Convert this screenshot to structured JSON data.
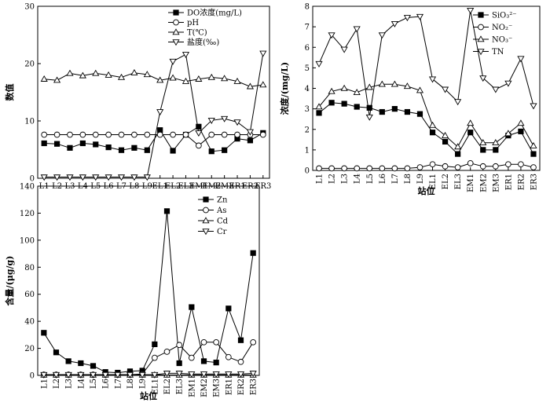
{
  "chart_data": [
    {
      "type": "line",
      "ylabel": "数值",
      "xlabel": "",
      "ylim": [
        0,
        30
      ],
      "yticks": [
        0,
        10,
        20,
        30
      ],
      "legend_position": "top-right",
      "categories": [
        "L1",
        "L2",
        "L3",
        "L4",
        "L5",
        "L6",
        "L7",
        "L8",
        "L9",
        "EL1",
        "EL2",
        "EL3",
        "EM1",
        "EM2",
        "EM3",
        "ER1",
        "ER2",
        "ER3"
      ],
      "series": [
        {
          "name": "DO浓度(mg/L)",
          "marker": "square-filled",
          "values": [
            6.1,
            6.0,
            5.3,
            6.1,
            5.9,
            5.4,
            4.9,
            5.3,
            4.9,
            8.4,
            4.8,
            7.6,
            9.0,
            4.7,
            4.9,
            6.9,
            6.6,
            7.9
          ]
        },
        {
          "name": "pH",
          "marker": "circle-open",
          "values": [
            7.6,
            7.6,
            7.6,
            7.6,
            7.6,
            7.6,
            7.6,
            7.6,
            7.6,
            7.6,
            7.6,
            7.6,
            5.7,
            7.6,
            7.6,
            7.6,
            7.6,
            7.6
          ]
        },
        {
          "name": "T(℃)",
          "marker": "triangle-up-open",
          "values": [
            17.3,
            17.1,
            18.3,
            17.9,
            18.3,
            18.0,
            17.6,
            18.4,
            18.1,
            17.1,
            17.5,
            16.9,
            17.3,
            17.6,
            17.4,
            16.9,
            16.0,
            16.3
          ]
        },
        {
          "name": "盐度(‰)",
          "marker": "triangle-down-open",
          "values": [
            0.2,
            0.2,
            0.2,
            0.2,
            0.2,
            0.2,
            0.2,
            0.2,
            0.2,
            11.6,
            20.4,
            21.6,
            7.9,
            10.1,
            10.4,
            9.8,
            8.1,
            21.8
          ]
        }
      ]
    },
    {
      "type": "line",
      "ylabel": "浓度/(mg/L)",
      "xlabel": "站位",
      "ylim": [
        0,
        8
      ],
      "yticks": [
        0,
        1,
        2,
        3,
        4,
        5,
        6,
        7,
        8
      ],
      "legend_position": "top-right",
      "categories": [
        "L1",
        "L2",
        "L3",
        "L4",
        "L5",
        "L6",
        "L7",
        "L8",
        "L9",
        "EL1",
        "EL2",
        "EL3",
        "EM1",
        "EM2",
        "EM3",
        "ER1",
        "ER2",
        "ER3"
      ],
      "series": [
        {
          "name": "SiO₃²⁻",
          "marker": "square-filled",
          "values": [
            2.8,
            3.3,
            3.25,
            3.1,
            3.05,
            2.85,
            3.0,
            2.85,
            2.75,
            1.85,
            1.4,
            0.8,
            1.85,
            1.0,
            1.0,
            1.7,
            1.9,
            0.8
          ]
        },
        {
          "name": "NO₂⁻",
          "marker": "circle-open",
          "values": [
            0.1,
            0.1,
            0.1,
            0.1,
            0.1,
            0.1,
            0.1,
            0.1,
            0.15,
            0.3,
            0.2,
            0.15,
            0.35,
            0.2,
            0.2,
            0.3,
            0.3,
            0.15
          ]
        },
        {
          "name": "NO₃⁻",
          "marker": "triangle-up-open",
          "values": [
            3.1,
            3.85,
            4.0,
            3.8,
            4.05,
            4.2,
            4.2,
            4.1,
            3.9,
            2.2,
            1.7,
            1.15,
            2.3,
            1.35,
            1.35,
            1.8,
            2.3,
            1.2
          ]
        },
        {
          "name": "TN",
          "marker": "triangle-down-open",
          "values": [
            5.2,
            6.6,
            5.9,
            6.9,
            2.6,
            6.6,
            7.15,
            7.45,
            7.5,
            4.45,
            3.95,
            3.35,
            7.8,
            4.5,
            3.95,
            4.25,
            5.45,
            3.15
          ]
        }
      ]
    },
    {
      "type": "line",
      "ylabel": "含量/(μg/g)",
      "xlabel": "站位",
      "ylim": [
        0,
        140
      ],
      "yticks": [
        0,
        20,
        40,
        60,
        80,
        100,
        120,
        140
      ],
      "legend_position": "top-right",
      "categories": [
        "L1",
        "L2",
        "L3",
        "L4",
        "L5",
        "L6",
        "L7",
        "L8",
        "L9",
        "EL1",
        "EL2",
        "EL3",
        "EM1",
        "EM2",
        "EM3",
        "ER1",
        "ER2",
        "ER3"
      ],
      "series": [
        {
          "name": "Zn",
          "marker": "square-filled",
          "values": [
            31.5,
            17,
            10.5,
            9,
            7,
            2.5,
            2,
            3,
            3.5,
            23,
            121.5,
            9,
            50.5,
            10.5,
            9.5,
            49.5,
            26,
            90.5
          ]
        },
        {
          "name": "As",
          "marker": "circle-open",
          "values": [
            0.5,
            0.5,
            0.5,
            0.5,
            0.5,
            0.5,
            0.5,
            0.5,
            1,
            13,
            17.5,
            22.5,
            13,
            24.5,
            24.5,
            13.5,
            10,
            24.5
          ]
        },
        {
          "name": "Cd",
          "marker": "triangle-up-open",
          "values": [
            0.3,
            0.3,
            0.3,
            0.3,
            0.3,
            0.3,
            0.3,
            0.3,
            0.3,
            0.3,
            0.3,
            0.3,
            0.3,
            0.3,
            0.3,
            0.3,
            0.3,
            0.3
          ]
        },
        {
          "name": "Cr",
          "marker": "triangle-down-open",
          "values": [
            0.5,
            0.5,
            0.5,
            0.5,
            0.5,
            0.5,
            0.5,
            0.5,
            0.5,
            0.5,
            1.5,
            1.5,
            1,
            1,
            1,
            1,
            1,
            1.5
          ]
        }
      ]
    }
  ]
}
